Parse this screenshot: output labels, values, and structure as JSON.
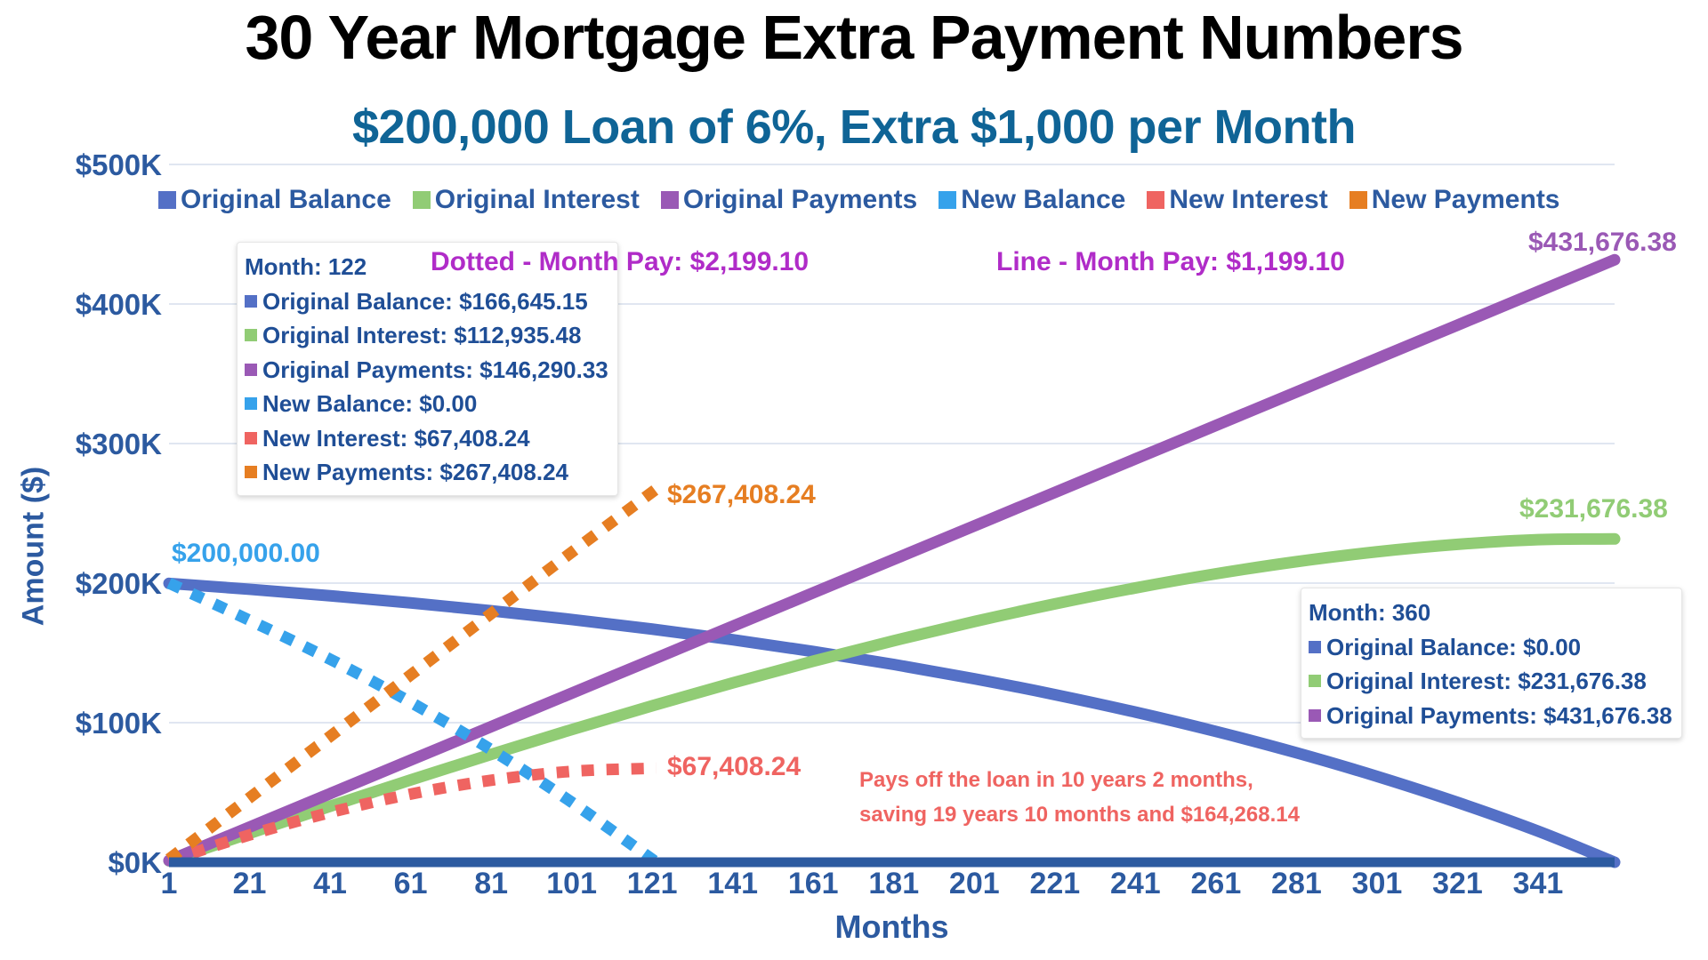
{
  "title": "30 Year Mortgage Extra Payment Numbers",
  "subtitle": "$200,000 Loan of 6%, Extra $1,000 per Month",
  "legend": [
    {
      "label": "Original Balance",
      "color": "#5470c6"
    },
    {
      "label": "Original Interest",
      "color": "#91cc75"
    },
    {
      "label": "Original Payments",
      "color": "#9a59b5"
    },
    {
      "label": "New Balance",
      "color": "#36a2eb"
    },
    {
      "label": "New Interest",
      "color": "#ef6461"
    },
    {
      "label": "New Payments",
      "color": "#e67e22"
    }
  ],
  "axes": {
    "y_label": "Amount ($)",
    "x_label": "Months",
    "y_ticks": [
      "$500K",
      "$400K",
      "$300K",
      "$200K",
      "$100K",
      "$0K"
    ],
    "x_ticks": [
      "1",
      "21",
      "41",
      "61",
      "81",
      "101",
      "121",
      "141",
      "161",
      "181",
      "201",
      "221",
      "241",
      "261",
      "281",
      "301",
      "321",
      "341"
    ]
  },
  "notes": {
    "dotted": "Dotted - Month Pay: $2,199.10",
    "line": "Line - Month Pay: $1,199.10"
  },
  "tooltip_left": {
    "header": "Month: 122",
    "rows": [
      {
        "label": "Original Balance: $166,645.15",
        "color": "#5470c6"
      },
      {
        "label": "Original Interest: $112,935.48",
        "color": "#91cc75"
      },
      {
        "label": "Original Payments: $146,290.33",
        "color": "#9a59b5"
      },
      {
        "label": "New Balance: $0.00",
        "color": "#36a2eb"
      },
      {
        "label": "New Interest: $67,408.24",
        "color": "#ef6461"
      },
      {
        "label": "New Payments: $267,408.24",
        "color": "#e67e22"
      }
    ]
  },
  "tooltip_right": {
    "header": "Month: 360",
    "rows": [
      {
        "label": "Original Balance: $0.00",
        "color": "#5470c6"
      },
      {
        "label": "Original Interest: $231,676.38",
        "color": "#91cc75"
      },
      {
        "label": "Original Payments: $431,676.38",
        "color": "#9a59b5"
      }
    ]
  },
  "data_labels": {
    "original_payments_end": "$431,676.38",
    "original_interest_end": "$231,676.38",
    "new_payments_end": "$267,408.24",
    "new_interest_end": "$67,408.24",
    "new_balance_start": "$200,000.00"
  },
  "annotation": {
    "line1": "Pays off the loan in 10 years 2 months,",
    "line2": "saving 19 years 10 months and $164,268.14"
  },
  "chart_data": {
    "type": "line",
    "title": "30 Year Mortgage Extra Payment Numbers",
    "subtitle": "$200,000 Loan of 6%, Extra $1,000 per Month",
    "xlabel": "Months",
    "ylabel": "Amount ($)",
    "ylim": [
      0,
      500000
    ],
    "xlim": [
      1,
      360
    ],
    "grid": true,
    "legend_position": "top",
    "x": [
      1,
      21,
      41,
      61,
      81,
      101,
      121,
      141,
      161,
      181,
      201,
      221,
      241,
      261,
      281,
      301,
      321,
      341,
      360
    ],
    "series": [
      {
        "name": "Original Balance",
        "style": "solid",
        "color": "#5470c6",
        "values": [
          199800.9,
          195576,
          190945,
          185830,
          180177,
          173935,
          167039,
          159420,
          151004,
          141708,
          131438,
          120092,
          107558,
          93712,
          78418,
          61520,
          42857,
          22237,
          0
        ]
      },
      {
        "name": "Original Interest",
        "style": "solid",
        "color": "#91cc75",
        "values": [
          1000,
          20757,
          40108,
          58975,
          77304,
          95044,
          112130,
          128493,
          144059,
          158745,
          172457,
          185093,
          196541,
          206677,
          215365,
          222449,
          227768,
          231130,
          231676.38
        ]
      },
      {
        "name": "Original Payments",
        "style": "solid",
        "color": "#9a59b5",
        "values": [
          1199.1,
          25181,
          49163,
          73145,
          97127,
          121109,
          145091,
          169073,
          193055,
          217037,
          241019,
          265001,
          288983,
          312965,
          336947,
          360929,
          384911,
          408893,
          431676.38
        ]
      },
      {
        "name": "New Balance",
        "style": "dotted",
        "color": "#36a2eb",
        "x": [
          1,
          21,
          41,
          61,
          81,
          101,
          122
        ],
        "values": [
          200000.0,
          173361,
          145468,
          114658,
          80621,
          43024,
          0
        ]
      },
      {
        "name": "New Interest",
        "style": "dotted",
        "color": "#ef6461",
        "x": [
          1,
          21,
          41,
          61,
          81,
          101,
          122
        ],
        "values": [
          1000,
          19542,
          35631,
          48803,
          58748,
          65133,
          67408.24
        ]
      },
      {
        "name": "New Payments",
        "style": "dotted",
        "color": "#e67e22",
        "x": [
          1,
          21,
          41,
          61,
          81,
          101,
          122
        ],
        "values": [
          2199.1,
          46181,
          90163,
          134145,
          178127,
          222109,
          267408.24
        ]
      }
    ],
    "annotations": [
      "Dotted - Month Pay: $2,199.10",
      "Line - Month Pay: $1,199.10",
      "Pays off the loan in 10 years 2 months, saving 19 years 10 months and $164,268.14"
    ]
  }
}
